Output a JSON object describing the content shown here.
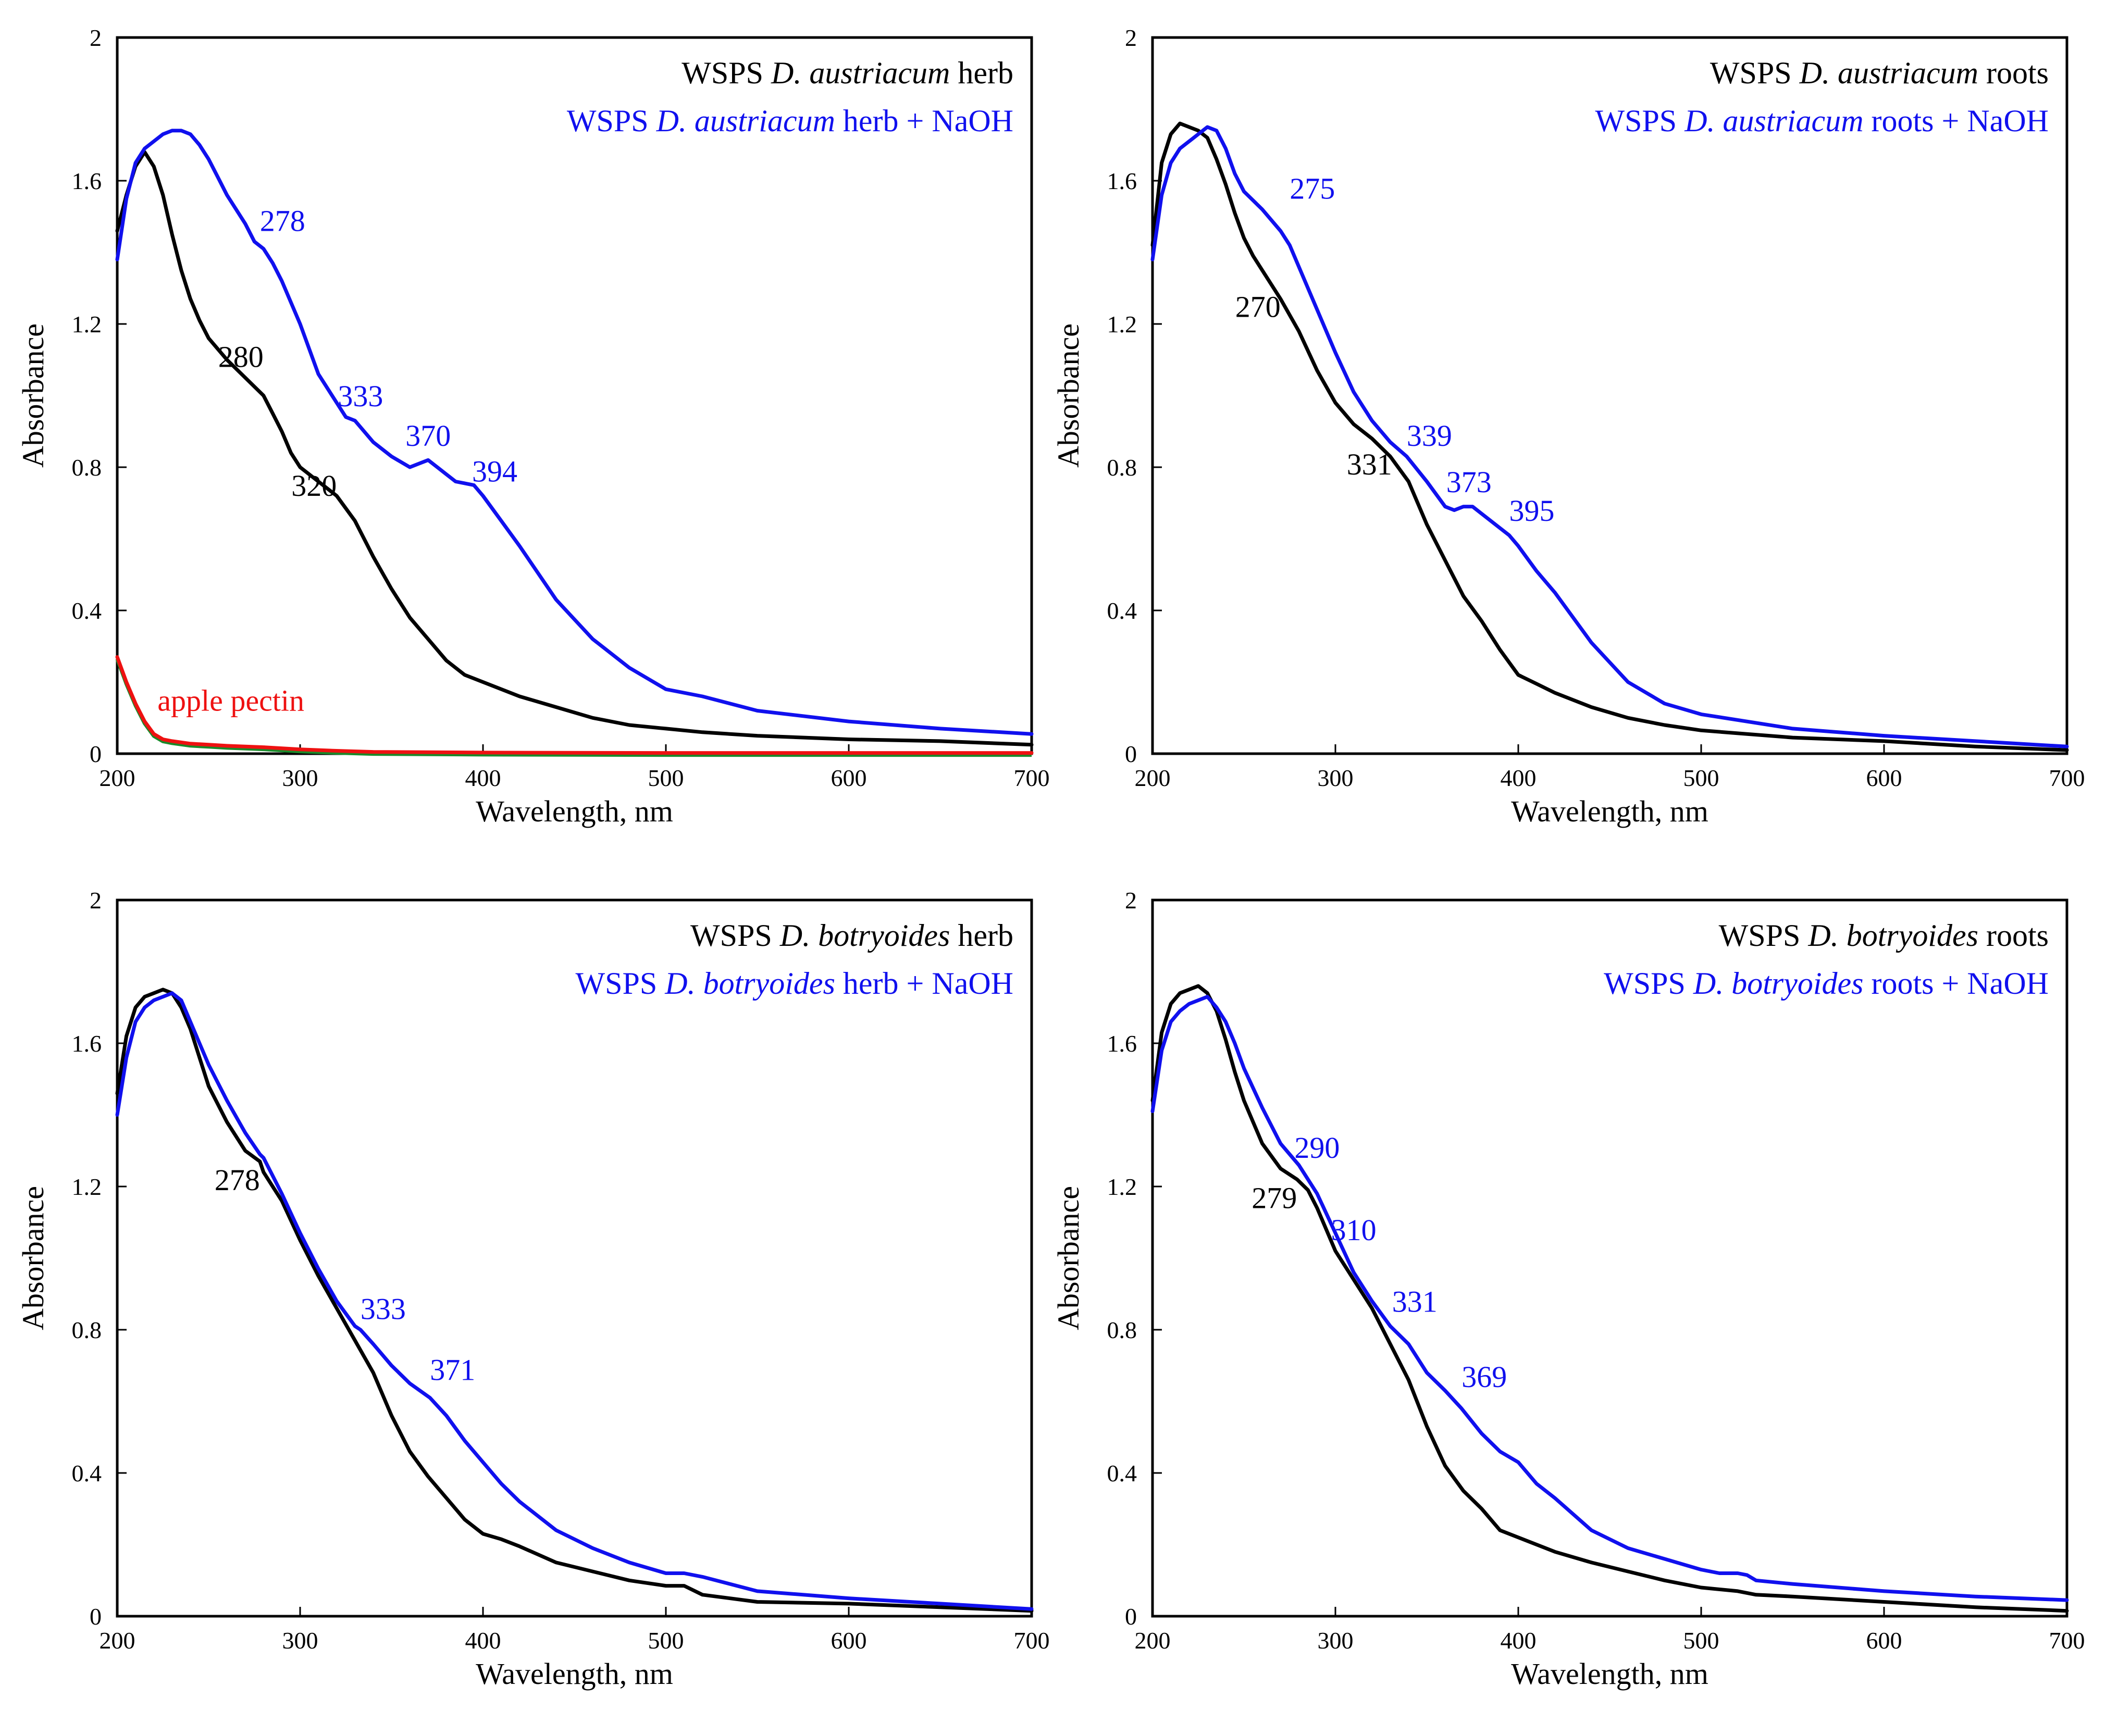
{
  "figure": {
    "colors": {
      "base": "#000000",
      "naoh": "#1010ee",
      "pectin": "#ee1111",
      "pectin_under": "#1a8a2a"
    }
  },
  "chart_data": [
    {
      "type": "line",
      "xlabel": "Wavelength, nm",
      "ylabel": "Absorbance",
      "xlim": [
        200,
        700
      ],
      "ylim": [
        0,
        2
      ],
      "xticks": [
        "200",
        "300",
        "400",
        "500",
        "600",
        "700"
      ],
      "yticks": [
        "0",
        "0.4",
        "0.8",
        "1.2",
        "1.6",
        "2"
      ],
      "legend": [
        {
          "prefix": "WSPS ",
          "species": "D. austriacum",
          "suffix": " herb",
          "color": "#000000"
        },
        {
          "prefix": "WSPS ",
          "species": "D. austriacum",
          "suffix": " herb + NaOH",
          "color": "#1010ee"
        }
      ],
      "series": [
        {
          "name": "WSPS D. austriacum herb",
          "color": "#000000",
          "x": [
            200,
            205,
            210,
            215,
            220,
            225,
            230,
            235,
            240,
            245,
            250,
            260,
            270,
            280,
            285,
            290,
            295,
            300,
            310,
            320,
            330,
            340,
            350,
            360,
            370,
            380,
            390,
            400,
            410,
            420,
            440,
            460,
            480,
            500,
            520,
            550,
            600,
            650,
            700
          ],
          "y": [
            1.46,
            1.56,
            1.64,
            1.68,
            1.64,
            1.56,
            1.45,
            1.35,
            1.27,
            1.21,
            1.16,
            1.1,
            1.05,
            1.0,
            0.95,
            0.9,
            0.84,
            0.8,
            0.76,
            0.72,
            0.65,
            0.55,
            0.46,
            0.38,
            0.32,
            0.26,
            0.22,
            0.2,
            0.18,
            0.16,
            0.13,
            0.1,
            0.08,
            0.07,
            0.06,
            0.05,
            0.04,
            0.035,
            0.025
          ]
        },
        {
          "name": "WSPS D. austriacum herb + NaOH",
          "color": "#1010ee",
          "x": [
            200,
            205,
            210,
            215,
            220,
            225,
            230,
            235,
            240,
            245,
            250,
            255,
            260,
            270,
            275,
            280,
            285,
            290,
            300,
            310,
            320,
            325,
            330,
            340,
            350,
            360,
            365,
            370,
            375,
            380,
            385,
            390,
            395,
            400,
            410,
            420,
            440,
            460,
            480,
            500,
            520,
            550,
            600,
            650,
            700
          ],
          "y": [
            1.38,
            1.55,
            1.65,
            1.69,
            1.71,
            1.73,
            1.74,
            1.74,
            1.73,
            1.7,
            1.66,
            1.61,
            1.56,
            1.48,
            1.43,
            1.41,
            1.37,
            1.32,
            1.2,
            1.06,
            0.98,
            0.94,
            0.93,
            0.87,
            0.83,
            0.8,
            0.81,
            0.82,
            0.8,
            0.78,
            0.76,
            0.755,
            0.75,
            0.72,
            0.65,
            0.58,
            0.43,
            0.32,
            0.24,
            0.18,
            0.16,
            0.12,
            0.09,
            0.07,
            0.055
          ]
        },
        {
          "name": "apple pectin",
          "color": "#ee1111",
          "x": [
            200,
            205,
            210,
            215,
            220,
            225,
            230,
            240,
            250,
            260,
            280,
            300,
            320,
            340,
            400,
            500,
            600,
            700
          ],
          "y": [
            0.27,
            0.2,
            0.14,
            0.09,
            0.055,
            0.04,
            0.035,
            0.028,
            0.025,
            0.022,
            0.018,
            0.012,
            0.008,
            0.005,
            0.003,
            0.002,
            0.002,
            0.002
          ]
        }
      ],
      "annotations": [
        {
          "text": "apple pectin",
          "x": 222,
          "y": 0.12,
          "color": "#ee1111",
          "anchor": "start"
        },
        {
          "text": "278",
          "x": 278,
          "y": 1.46,
          "color": "#1010ee",
          "anchor": "start"
        },
        {
          "text": "280",
          "x": 280,
          "y": 1.08,
          "color": "#000000",
          "anchor": "end"
        },
        {
          "text": "333",
          "x": 333,
          "y": 0.97,
          "color": "#1010ee",
          "anchor": "middle"
        },
        {
          "text": "370",
          "x": 370,
          "y": 0.86,
          "color": "#1010ee",
          "anchor": "middle"
        },
        {
          "text": "394",
          "x": 394,
          "y": 0.76,
          "color": "#1010ee",
          "anchor": "start"
        },
        {
          "text": "320",
          "x": 320,
          "y": 0.72,
          "color": "#000000",
          "anchor": "end"
        }
      ]
    },
    {
      "type": "line",
      "xlabel": "Wavelength, nm",
      "ylabel": "Absorbance",
      "xlim": [
        200,
        700
      ],
      "ylim": [
        0,
        2
      ],
      "xticks": [
        "200",
        "300",
        "400",
        "500",
        "600",
        "700"
      ],
      "yticks": [
        "0",
        "0.4",
        "0.8",
        "1.2",
        "1.6",
        "2"
      ],
      "legend": [
        {
          "prefix": "WSPS ",
          "species": "D. austriacum",
          "suffix": " roots",
          "color": "#000000"
        },
        {
          "prefix": "WSPS ",
          "species": "D. austriacum",
          "suffix": " roots + NaOH",
          "color": "#1010ee"
        }
      ],
      "series": [
        {
          "name": "WSPS D. austriacum roots",
          "color": "#000000",
          "x": [
            200,
            205,
            210,
            215,
            220,
            225,
            230,
            235,
            240,
            245,
            250,
            255,
            260,
            270,
            280,
            290,
            300,
            310,
            320,
            330,
            340,
            350,
            360,
            370,
            380,
            390,
            400,
            410,
            420,
            440,
            460,
            480,
            500,
            550,
            600,
            650,
            700
          ],
          "y": [
            1.42,
            1.65,
            1.73,
            1.76,
            1.75,
            1.74,
            1.72,
            1.66,
            1.59,
            1.51,
            1.44,
            1.39,
            1.35,
            1.27,
            1.18,
            1.07,
            0.98,
            0.92,
            0.88,
            0.83,
            0.76,
            0.64,
            0.54,
            0.44,
            0.37,
            0.29,
            0.22,
            0.195,
            0.17,
            0.13,
            0.1,
            0.08,
            0.065,
            0.045,
            0.035,
            0.02,
            0.01
          ]
        },
        {
          "name": "WSPS D. austriacum roots + NaOH",
          "color": "#1010ee",
          "x": [
            200,
            205,
            210,
            215,
            220,
            225,
            230,
            235,
            240,
            245,
            250,
            260,
            270,
            275,
            280,
            290,
            300,
            310,
            320,
            330,
            339,
            350,
            360,
            365,
            370,
            375,
            380,
            390,
            395,
            400,
            410,
            420,
            440,
            460,
            480,
            500,
            550,
            600,
            650,
            700
          ],
          "y": [
            1.38,
            1.56,
            1.65,
            1.69,
            1.71,
            1.73,
            1.75,
            1.74,
            1.69,
            1.62,
            1.57,
            1.52,
            1.46,
            1.42,
            1.36,
            1.24,
            1.12,
            1.01,
            0.93,
            0.87,
            0.83,
            0.76,
            0.69,
            0.68,
            0.69,
            0.69,
            0.67,
            0.63,
            0.61,
            0.58,
            0.51,
            0.45,
            0.31,
            0.2,
            0.14,
            0.11,
            0.07,
            0.05,
            0.035,
            0.02
          ]
        }
      ],
      "annotations": [
        {
          "text": "275",
          "x": 275,
          "y": 1.55,
          "color": "#1010ee",
          "anchor": "start"
        },
        {
          "text": "270",
          "x": 270,
          "y": 1.22,
          "color": "#000000",
          "anchor": "end"
        },
        {
          "text": "339",
          "x": 339,
          "y": 0.86,
          "color": "#1010ee",
          "anchor": "start"
        },
        {
          "text": "331",
          "x": 331,
          "y": 0.78,
          "color": "#000000",
          "anchor": "end"
        },
        {
          "text": "373",
          "x": 373,
          "y": 0.73,
          "color": "#1010ee",
          "anchor": "middle"
        },
        {
          "text": "395",
          "x": 395,
          "y": 0.65,
          "color": "#1010ee",
          "anchor": "start"
        }
      ]
    },
    {
      "type": "line",
      "xlabel": "Wavelength, nm",
      "ylabel": "Absorbance",
      "xlim": [
        200,
        700
      ],
      "ylim": [
        0,
        2
      ],
      "xticks": [
        "200",
        "300",
        "400",
        "500",
        "600",
        "700"
      ],
      "yticks": [
        "0",
        "0.4",
        "0.8",
        "1.2",
        "1.6",
        "2"
      ],
      "legend": [
        {
          "prefix": "WSPS ",
          "species": "D. botryoides",
          "suffix": " herb",
          "color": "#000000"
        },
        {
          "prefix": "WSPS ",
          "species": "D. botryoides",
          "suffix": " herb + NaOH",
          "color": "#1010ee"
        }
      ],
      "series": [
        {
          "name": "WSPS D. botryoides herb",
          "color": "#000000",
          "x": [
            200,
            205,
            210,
            215,
            220,
            225,
            230,
            235,
            240,
            245,
            250,
            260,
            270,
            278,
            280,
            290,
            300,
            310,
            320,
            330,
            340,
            350,
            360,
            370,
            380,
            390,
            400,
            410,
            420,
            440,
            460,
            480,
            500,
            510,
            520,
            550,
            600,
            650,
            700
          ],
          "y": [
            1.46,
            1.62,
            1.7,
            1.73,
            1.74,
            1.75,
            1.74,
            1.7,
            1.64,
            1.56,
            1.48,
            1.38,
            1.3,
            1.27,
            1.24,
            1.16,
            1.05,
            0.95,
            0.86,
            0.77,
            0.68,
            0.56,
            0.46,
            0.39,
            0.33,
            0.27,
            0.23,
            0.215,
            0.195,
            0.15,
            0.125,
            0.1,
            0.085,
            0.085,
            0.06,
            0.04,
            0.035,
            0.025,
            0.015
          ]
        },
        {
          "name": "WSPS D. botryoides herb + NaOH",
          "color": "#1010ee",
          "x": [
            200,
            205,
            210,
            215,
            220,
            225,
            230,
            235,
            240,
            245,
            250,
            260,
            270,
            278,
            280,
            290,
            300,
            310,
            320,
            330,
            333,
            340,
            350,
            360,
            371,
            380,
            390,
            400,
            410,
            420,
            440,
            460,
            480,
            500,
            510,
            520,
            550,
            600,
            650,
            700
          ],
          "y": [
            1.4,
            1.56,
            1.66,
            1.7,
            1.72,
            1.73,
            1.74,
            1.72,
            1.66,
            1.6,
            1.54,
            1.44,
            1.35,
            1.29,
            1.28,
            1.18,
            1.07,
            0.97,
            0.88,
            0.81,
            0.8,
            0.76,
            0.7,
            0.65,
            0.61,
            0.56,
            0.49,
            0.43,
            0.37,
            0.32,
            0.24,
            0.19,
            0.15,
            0.12,
            0.12,
            0.11,
            0.07,
            0.05,
            0.035,
            0.02
          ]
        }
      ],
      "annotations": [
        {
          "text": "278",
          "x": 278,
          "y": 1.19,
          "color": "#000000",
          "anchor": "end"
        },
        {
          "text": "333",
          "x": 333,
          "y": 0.83,
          "color": "#1010ee",
          "anchor": "start"
        },
        {
          "text": "371",
          "x": 371,
          "y": 0.66,
          "color": "#1010ee",
          "anchor": "start"
        }
      ]
    },
    {
      "type": "line",
      "xlabel": "Wavelength, nm",
      "ylabel": "Absorbance",
      "xlim": [
        200,
        700
      ],
      "ylim": [
        0,
        2
      ],
      "xticks": [
        "200",
        "300",
        "400",
        "500",
        "600",
        "700"
      ],
      "yticks": [
        "0",
        "0.4",
        "0.8",
        "1.2",
        "1.6",
        "2"
      ],
      "legend": [
        {
          "prefix": "WSPS ",
          "species": "D. botryoides",
          "suffix": " roots",
          "color": "#000000"
        },
        {
          "prefix": "WSPS ",
          "species": "D. botryoides",
          "suffix": " roots + NaOH",
          "color": "#1010ee"
        }
      ],
      "series": [
        {
          "name": "WSPS D. botryoides roots",
          "color": "#000000",
          "x": [
            200,
            205,
            210,
            215,
            220,
            225,
            230,
            235,
            240,
            245,
            250,
            260,
            270,
            279,
            285,
            290,
            300,
            310,
            320,
            330,
            340,
            350,
            360,
            370,
            380,
            390,
            400,
            410,
            420,
            440,
            460,
            480,
            500,
            520,
            530,
            550,
            600,
            650,
            700
          ],
          "y": [
            1.44,
            1.63,
            1.71,
            1.74,
            1.75,
            1.76,
            1.74,
            1.69,
            1.61,
            1.52,
            1.44,
            1.32,
            1.25,
            1.22,
            1.19,
            1.14,
            1.02,
            0.94,
            0.86,
            0.76,
            0.66,
            0.53,
            0.42,
            0.35,
            0.3,
            0.24,
            0.22,
            0.2,
            0.18,
            0.15,
            0.125,
            0.1,
            0.08,
            0.07,
            0.06,
            0.055,
            0.04,
            0.025,
            0.015
          ]
        },
        {
          "name": "WSPS D. botryoides roots + NaOH",
          "color": "#1010ee",
          "x": [
            200,
            205,
            210,
            215,
            220,
            225,
            230,
            235,
            240,
            245,
            250,
            260,
            270,
            280,
            290,
            300,
            310,
            320,
            330,
            340,
            350,
            360,
            369,
            380,
            390,
            400,
            410,
            420,
            440,
            460,
            480,
            500,
            510,
            520,
            525,
            530,
            550,
            600,
            650,
            700
          ],
          "y": [
            1.41,
            1.58,
            1.66,
            1.69,
            1.71,
            1.72,
            1.73,
            1.7,
            1.66,
            1.6,
            1.53,
            1.42,
            1.32,
            1.26,
            1.18,
            1.07,
            0.96,
            0.88,
            0.81,
            0.76,
            0.68,
            0.63,
            0.58,
            0.51,
            0.46,
            0.43,
            0.37,
            0.33,
            0.24,
            0.19,
            0.16,
            0.13,
            0.12,
            0.12,
            0.115,
            0.1,
            0.09,
            0.07,
            0.055,
            0.045
          ]
        }
      ],
      "annotations": [
        {
          "text": "290",
          "x": 290,
          "y": 1.28,
          "color": "#1010ee",
          "anchor": "middle"
        },
        {
          "text": "279",
          "x": 279,
          "y": 1.14,
          "color": "#000000",
          "anchor": "end"
        },
        {
          "text": "310",
          "x": 310,
          "y": 1.05,
          "color": "#1010ee",
          "anchor": "middle"
        },
        {
          "text": "331",
          "x": 331,
          "y": 0.85,
          "color": "#1010ee",
          "anchor": "start"
        },
        {
          "text": "369",
          "x": 369,
          "y": 0.64,
          "color": "#1010ee",
          "anchor": "start"
        }
      ]
    }
  ]
}
